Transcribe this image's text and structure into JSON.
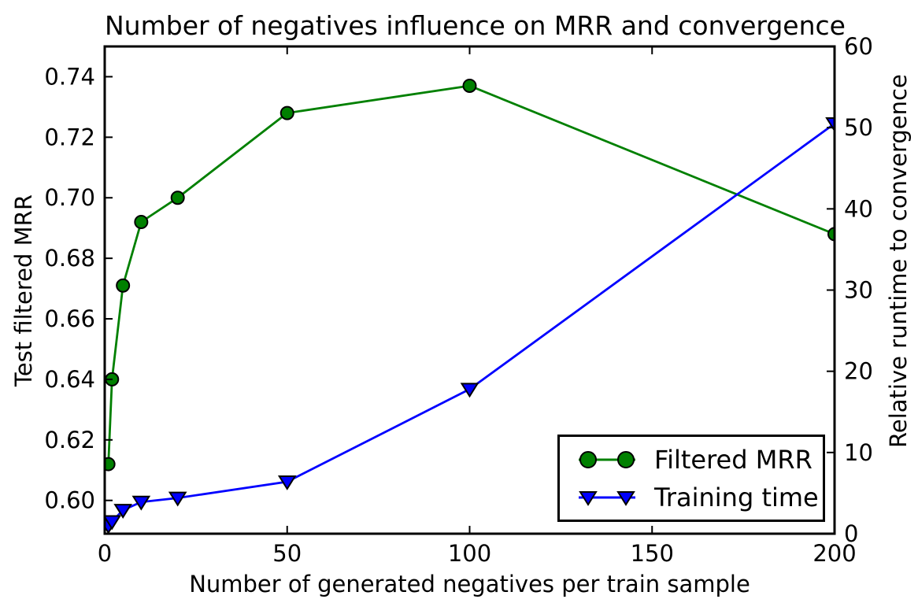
{
  "chart_data": {
    "type": "line",
    "title": "Number of negatives influence on MRR and convergence",
    "xlabel": "Number of generated negatives per train sample",
    "ylabel_left": "Test filtered MRR",
    "ylabel_right": "Relative runtime to convergence",
    "xlim": [
      0,
      200
    ],
    "ylim_left": [
      0.589,
      0.75
    ],
    "ylim_right": [
      0,
      60
    ],
    "xticks": [
      0,
      50,
      100,
      150,
      200
    ],
    "xtick_labels": [
      "0",
      "50",
      "100",
      "150",
      "200"
    ],
    "yticks_left": [
      0.6,
      0.62,
      0.64,
      0.66,
      0.68,
      0.7,
      0.72,
      0.74
    ],
    "ytick_left_labels": [
      "0.60",
      "0.62",
      "0.64",
      "0.66",
      "0.68",
      "0.70",
      "0.72",
      "0.74"
    ],
    "yticks_right": [
      0,
      10,
      20,
      30,
      40,
      50,
      60
    ],
    "ytick_right_labels": [
      "0",
      "10",
      "20",
      "30",
      "40",
      "50",
      "60"
    ],
    "x": [
      1,
      2,
      5,
      10,
      20,
      50,
      100,
      200
    ],
    "series": [
      {
        "name": "Filtered MRR",
        "axis": "left",
        "color": "#008000",
        "marker": "circle",
        "values": [
          0.612,
          0.64,
          0.671,
          0.692,
          0.7,
          0.728,
          0.737,
          0.688
        ]
      },
      {
        "name": "Training time",
        "axis": "right",
        "color": "#0000ff",
        "marker": "triangle-down",
        "values": [
          1.0,
          1.5,
          2.9,
          3.9,
          4.4,
          6.4,
          17.8,
          50.5
        ]
      }
    ],
    "legend": {
      "position": "lower right"
    },
    "grid": false,
    "background": "#ffffff",
    "axis_color": "#000000"
  }
}
